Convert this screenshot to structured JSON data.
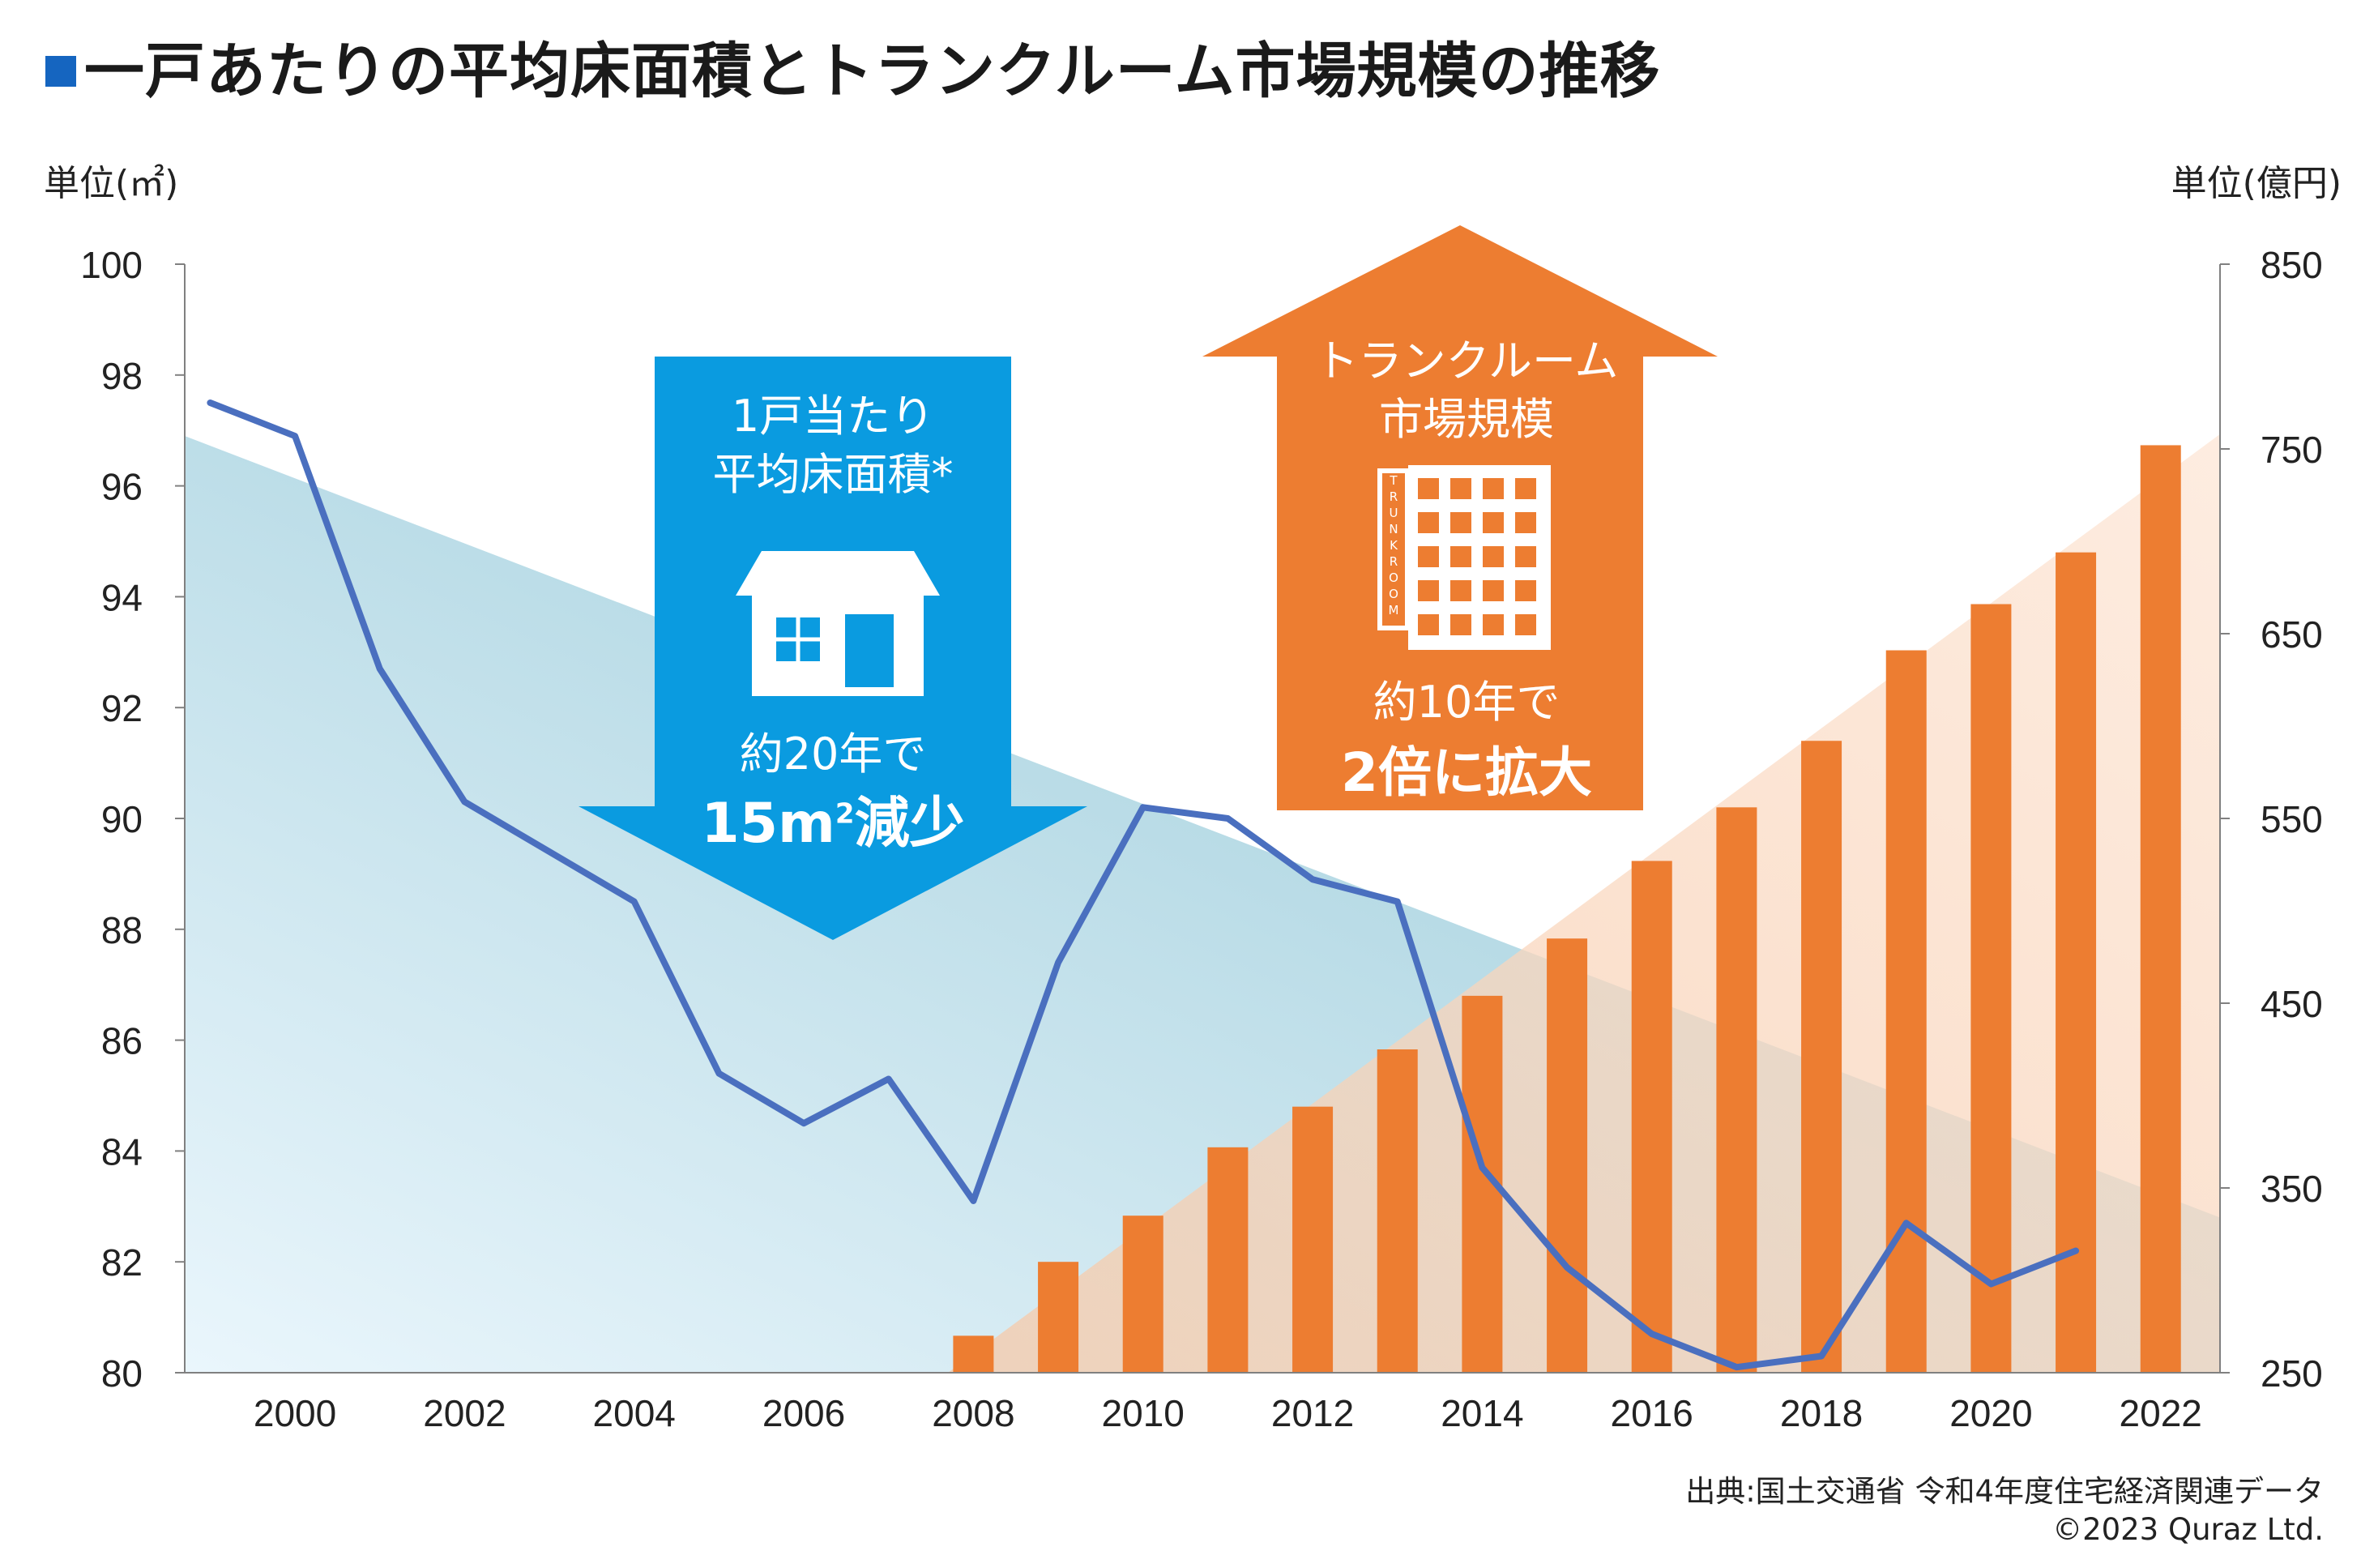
{
  "title": "一戸あたりの平均床面積とトランクルーム市場規模の推移",
  "left_unit": "単位(㎡)",
  "right_unit": "単位(億円)",
  "source_line": "出典:国土交通省 令和4年度住宅経済関連データ",
  "copyright": "©2023 Quraz Ltd.",
  "blue_callout": {
    "line1": "1戸当たり",
    "line2": "平均床面積*",
    "line3": "約20年で",
    "line4_number": "15",
    "line4_unit": "m",
    "line4_sup": "2",
    "line4_rest": "減少"
  },
  "orange_callout": {
    "line1": "トランクルーム",
    "line2": "市場規模",
    "line3": "約10年で",
    "line4": "2倍に拡大",
    "building_label": "TRUNKROOM"
  },
  "colors": {
    "line": "#4a6fbf",
    "bar": "#ed7d31",
    "blue_arrow": "#0a9be0",
    "orange_arrow": "#ed7d31",
    "title_square": "#1565c0"
  },
  "chart_data": {
    "type": "bar+line",
    "x_ticks": [
      "2000",
      "2002",
      "2004",
      "2006",
      "2008",
      "2010",
      "2012",
      "2014",
      "2016",
      "2018",
      "2020",
      "2022"
    ],
    "x_range": [
      1998.7,
      2022.7
    ],
    "left_axis": {
      "label": "単位(㎡)",
      "range": [
        80,
        100
      ],
      "ticks": [
        "80",
        "82",
        "84",
        "86",
        "88",
        "90",
        "92",
        "94",
        "96",
        "98",
        "100"
      ]
    },
    "right_axis": {
      "label": "単位(億円)",
      "range": [
        250,
        850
      ],
      "ticks": [
        "250",
        "350",
        "450",
        "550",
        "650",
        "750",
        "850"
      ]
    },
    "line_series": {
      "name": "1戸当たり平均床面積",
      "axis": "left",
      "x": [
        1999,
        2000,
        2001,
        2002,
        2003,
        2004,
        2005,
        2006,
        2007,
        2008,
        2009,
        2010,
        2011,
        2012,
        2013,
        2014,
        2015,
        2016,
        2017,
        2018,
        2019,
        2020,
        2021
      ],
      "values": [
        97.5,
        96.9,
        92.7,
        90.3,
        89.4,
        88.5,
        85.4,
        84.5,
        85.3,
        83.1,
        87.4,
        90.2,
        90.0,
        88.9,
        88.5,
        83.7,
        81.9,
        80.7,
        80.1,
        80.3,
        82.7,
        81.6,
        82.2
      ]
    },
    "bar_series": {
      "name": "トランクルーム市場規模",
      "axis": "right",
      "x": [
        2008,
        2009,
        2010,
        2011,
        2012,
        2013,
        2014,
        2015,
        2016,
        2017,
        2018,
        2019,
        2020,
        2021,
        2022
      ],
      "values": [
        270,
        310,
        335,
        372,
        394,
        425,
        454,
        485,
        527,
        556,
        592,
        641,
        666,
        694,
        752
      ]
    },
    "trend_blue": {
      "axis": "left",
      "from": [
        1998.7,
        96.9
      ],
      "to": [
        2022.7,
        82.8
      ]
    },
    "trend_orange": {
      "axis": "right",
      "from": [
        2007.7,
        250
      ],
      "to": [
        2022.7,
        758
      ]
    }
  }
}
